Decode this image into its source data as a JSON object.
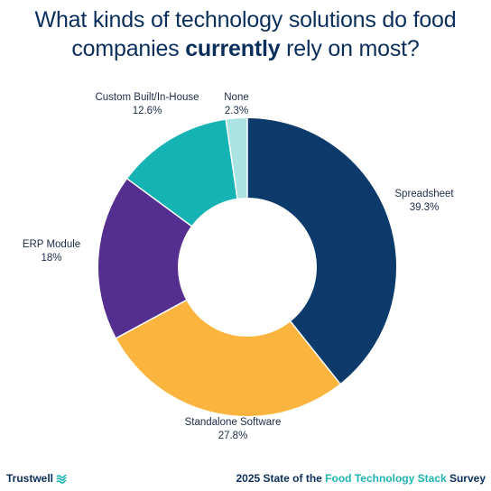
{
  "title": {
    "line1": "What kinds of technology solutions do food",
    "line2_pre": "companies ",
    "line2_bold": "currently",
    "line2_post": " rely on most?"
  },
  "chart_data": {
    "type": "pie",
    "donut": true,
    "slices": [
      {
        "label": "Spreadsheet",
        "value": 39.3,
        "value_label": "39.3%",
        "color": "#0b3a6b"
      },
      {
        "label": "Standalone Software",
        "value": 27.8,
        "value_label": "27.8%",
        "color": "#fbb53f"
      },
      {
        "label": "ERP Module",
        "value": 18,
        "value_label": "18%",
        "color": "#552f8f"
      },
      {
        "label": "Custom Built/In-House",
        "value": 12.6,
        "value_label": "12.6%",
        "color": "#15b3b3"
      },
      {
        "label": "None",
        "value": 2.3,
        "value_label": "2.3%",
        "color": "#a9e4e3"
      }
    ],
    "start": "top",
    "direction": "clockwise"
  },
  "footer": {
    "brand": "Trustwell",
    "brand_icon": "trustwell-waves-logo",
    "survey_pre": "2025 State of the ",
    "survey_highlight": "Food Technology Stack",
    "survey_post": " Survey"
  },
  "colors": {
    "title": "#0b2f5c",
    "highlight": "#1fb3b4"
  }
}
